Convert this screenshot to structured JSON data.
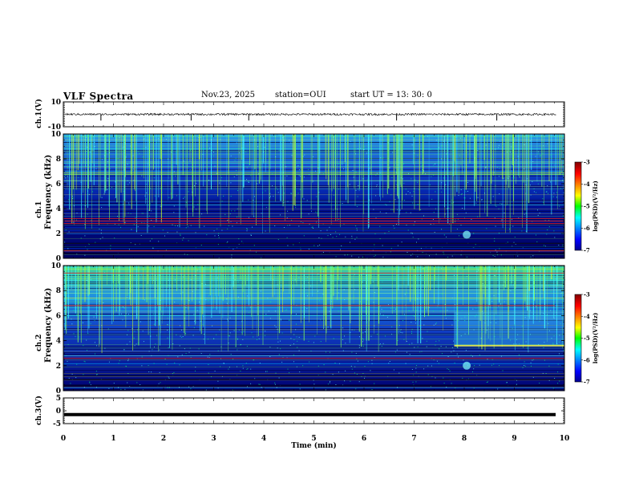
{
  "header": {
    "title": "VLF Spectra",
    "date": "Nov.23, 2025",
    "station": "station=OUI",
    "start": "start  UT =  13: 30: 0"
  },
  "colors": {
    "spectro_low": "#0000a0",
    "spectro_mid": "#00ffff",
    "spectro_high": "#ff0000",
    "trace": "#000000"
  },
  "chart_data": [
    {
      "type": "line",
      "name": "ch1-waveform",
      "ylabel": "ch.1(V)",
      "ylim": [
        -10,
        10
      ],
      "yticks": [
        "10",
        "-10"
      ],
      "xlim": [
        0,
        10
      ]
    },
    {
      "type": "heatmap",
      "name": "ch1-spectrogram",
      "ylabel_line1": "ch.1",
      "ylabel_line2": "Frequency (kHz)",
      "ylim": [
        0,
        10
      ],
      "yticks": [
        "0",
        "2",
        "4",
        "6",
        "8",
        "10"
      ],
      "colorbar": {
        "label": "log(PSD)(V²/Hz)",
        "range": [
          -7,
          -3
        ],
        "ticks": [
          "-3",
          "-4",
          "-5",
          "-6",
          "-7"
        ]
      },
      "red_lines_khz": [
        3.2,
        3.0,
        2.8,
        0.6
      ]
    },
    {
      "type": "heatmap",
      "name": "ch2-spectrogram",
      "ylabel_line1": "ch.2",
      "ylabel_line2": "Frequency (kHz)",
      "ylim": [
        0,
        10
      ],
      "yticks": [
        "0",
        "2",
        "4",
        "6",
        "8",
        "10"
      ],
      "colorbar": {
        "label": "log(PSD)(V²/Hz)",
        "range": [
          -7,
          -3
        ],
        "ticks": [
          "-3",
          "-4",
          "-5",
          "-6",
          "-7"
        ]
      },
      "red_lines_khz": [
        6.8,
        9.4,
        2.6
      ]
    },
    {
      "type": "line",
      "name": "ch3-waveform",
      "ylabel": "ch.3(V)",
      "ylim": [
        -5,
        5
      ],
      "yticks": [
        "5",
        "0",
        "-5"
      ],
      "y_value": -1.5,
      "xlim": [
        0,
        10
      ]
    }
  ],
  "xaxis": {
    "label": "Time  (min)",
    "ticks": [
      "0",
      "1",
      "2",
      "3",
      "4",
      "5",
      "6",
      "7",
      "8",
      "9",
      "10"
    ],
    "range": [
      0,
      10
    ]
  }
}
